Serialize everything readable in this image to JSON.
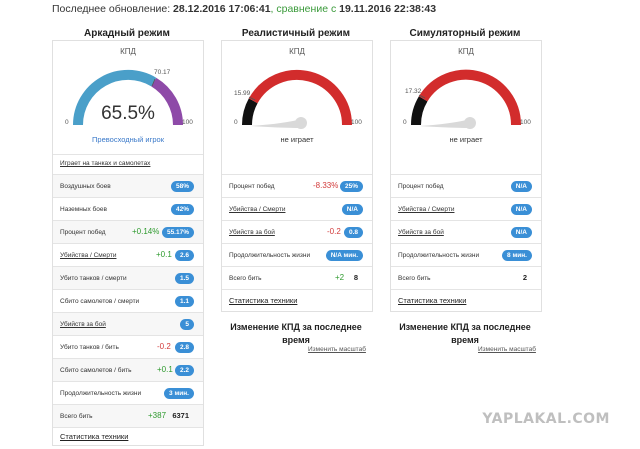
{
  "header": {
    "update_label": "Последнее обновление:",
    "update_time": "28.12.2016 17:06:41",
    "compare_label": ", сравнение с",
    "compare_time": "19.11.2016 22:38:43"
  },
  "arcade": {
    "title": "Аркадный режим",
    "kpd_label": "КПД",
    "gauge_min": "0",
    "gauge_max": "100",
    "gauge_marker": "70.17",
    "gauge_value": "65.5%",
    "gauge_fraction": 0.655,
    "status": "Превосходный игрок",
    "plays_link": "Играет на танках и самолетах",
    "rows": [
      {
        "label": "Воздушных боев",
        "badge": "58%"
      },
      {
        "label": "Наземных боев",
        "badge": "42%"
      },
      {
        "label": "Процент побед",
        "delta": "+0.14%",
        "badge": "55.17%"
      },
      {
        "label": "Убийства / Смерти",
        "delta": "+0.1",
        "badge": "2.6"
      },
      {
        "label": "Убито танков / смерти",
        "badge": "1.5"
      },
      {
        "label": "Сбито самолетов / смерти",
        "badge": "1.1"
      },
      {
        "label": "Убийств за бой",
        "badge": "5"
      },
      {
        "label": "Убито танков / бить",
        "delta": "-0.2",
        "badge": "2.8"
      },
      {
        "label": "Сбито самолетов / бить",
        "delta": "+0.1",
        "badge": "2.2"
      },
      {
        "label": "Продолжительность жизни",
        "badge": "3 мин."
      },
      {
        "label": "Всего бить",
        "delta": "+387",
        "value": "6371"
      }
    ],
    "stats_link": "Статистика техники"
  },
  "realistic": {
    "title": "Реалистичный режим",
    "kpd_label": "КПД",
    "gauge_min": "0",
    "gauge_max": "100",
    "gauge_marker": "15.99",
    "status": "не играет",
    "rows": [
      {
        "label": "Процент побед",
        "delta": "-8.33%",
        "badge": "25%"
      },
      {
        "label": "Убийства / Смерти",
        "badge": "N/A"
      },
      {
        "label": "Убийств за бой",
        "delta": "-0.2",
        "badge": "0.8"
      },
      {
        "label": "Продолжительность жизни",
        "badge": "N/A мин."
      },
      {
        "label": "Всего бить",
        "delta": "+2",
        "value": "8"
      }
    ],
    "stats_link": "Статистика техники",
    "change_title": "Изменение КПД за последнее время",
    "scale_link": "Изменить масштаб"
  },
  "simulator": {
    "title": "Симуляторный режим",
    "kpd_label": "КПД",
    "gauge_min": "0",
    "gauge_max": "100",
    "gauge_marker": "17.32",
    "status": "не играет",
    "rows": [
      {
        "label": "Процент побед",
        "badge": "N/A"
      },
      {
        "label": "Убийства / Смерти",
        "badge": "N/A"
      },
      {
        "label": "Убийств за бой",
        "badge": "N/A"
      },
      {
        "label": "Продолжительность жизни",
        "badge": "8 мин."
      },
      {
        "label": "Всего бить",
        "value": "2"
      }
    ],
    "stats_link": "Статистика техники",
    "change_title": "Изменение КПД за последнее время",
    "scale_link": "Изменить масштаб"
  },
  "watermark": "YAPLAKAL.COM",
  "colors": {
    "badge": "#3a8fd6",
    "gauge_blue": "#4a9fc9",
    "gauge_purple": "#8e4aa8",
    "gauge_red": "#d22c2c",
    "gauge_black": "#111111"
  }
}
